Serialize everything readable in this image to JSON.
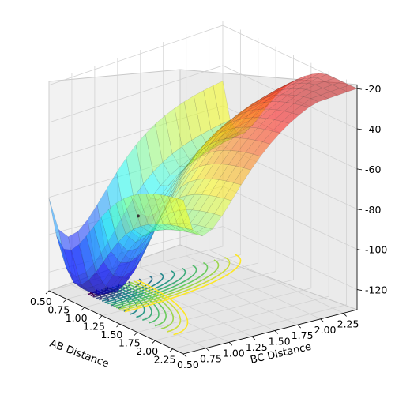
{
  "chart_data": {
    "type": "surface3d",
    "title": "",
    "xlabel": "AB Distance",
    "ylabel": "BC Distance",
    "zlabel": "",
    "x_ticks": [
      "0.50",
      "0.75",
      "1.00",
      "1.25",
      "1.50",
      "1.75",
      "2.00",
      "2.25"
    ],
    "y_ticks": [
      "0.50",
      "0.75",
      "1.00",
      "1.25",
      "1.50",
      "1.75",
      "2.00",
      "2.25"
    ],
    "z_ticks": [
      "-20",
      "-40",
      "-60",
      "-80",
      "-100",
      "-120"
    ],
    "xlim": [
      0.5,
      2.4
    ],
    "ylim": [
      0.5,
      2.4
    ],
    "zlim": [
      -130,
      -18
    ],
    "surface_colormap": "jet",
    "contour_colormap": "viridis",
    "marker_point": {
      "x": 1.05,
      "y": 1.05,
      "z": -88
    },
    "grid": true
  }
}
